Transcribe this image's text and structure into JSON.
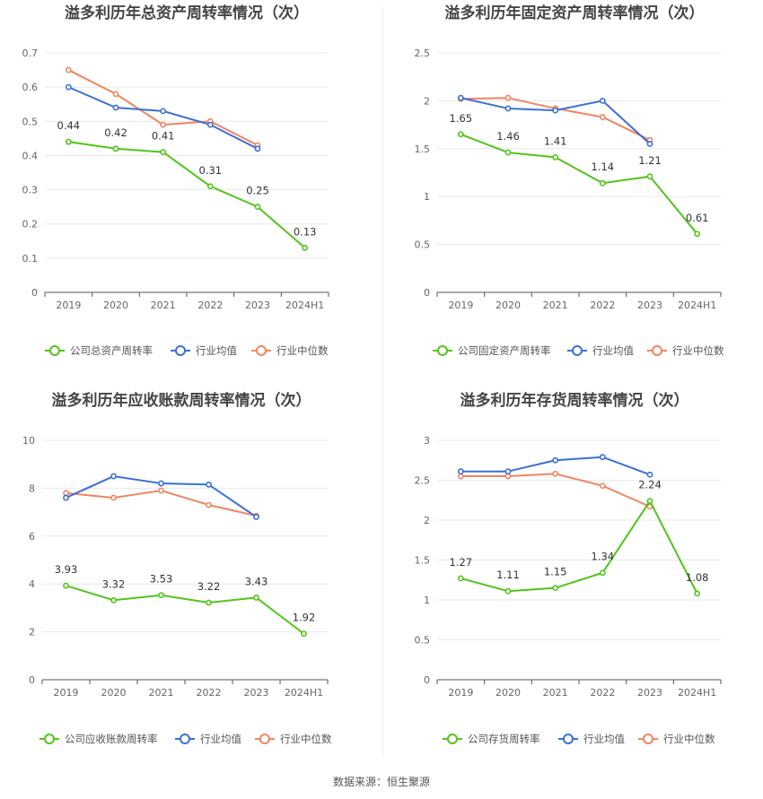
{
  "colors": {
    "company": "#52c41a",
    "avg": "#3b6fd8",
    "median": "#f08560",
    "grid": "#e8e8e8",
    "axis": "#555555",
    "divider": "#eeeeee"
  },
  "source_text": "数据来源：恒生聚源",
  "chart_data": [
    {
      "type": "line",
      "title": "溢多利历年总资产周转率情况（次）",
      "categories": [
        "2019",
        "2020",
        "2021",
        "2022",
        "2023",
        "2024H1"
      ],
      "ylim": [
        0,
        0.7
      ],
      "yticks": [
        "0",
        "0.1",
        "0.2",
        "0.3",
        "0.4",
        "0.5",
        "0.6",
        "0.7"
      ],
      "grid": true,
      "legend_position": "bottom",
      "series": [
        {
          "name": "公司总资产周转率",
          "role": "company",
          "values": [
            0.44,
            0.42,
            0.41,
            0.31,
            0.25,
            0.13
          ],
          "labels": [
            "0.44",
            "0.42",
            "0.41",
            "0.31",
            "0.25",
            "0.13"
          ]
        },
        {
          "name": "行业均值",
          "role": "avg",
          "values": [
            0.6,
            0.54,
            0.53,
            0.49,
            0.42,
            null
          ]
        },
        {
          "name": "行业中位数",
          "role": "median",
          "values": [
            0.65,
            0.58,
            0.49,
            0.5,
            0.43,
            null
          ]
        }
      ]
    },
    {
      "type": "line",
      "title": "溢多利历年固定资产周转率情况（次）",
      "categories": [
        "2019",
        "2020",
        "2021",
        "2022",
        "2023",
        "2024H1"
      ],
      "ylim": [
        0,
        2.5
      ],
      "yticks": [
        "0",
        "0.5",
        "1",
        "1.5",
        "2",
        "2.5"
      ],
      "grid": true,
      "legend_position": "bottom",
      "series": [
        {
          "name": "公司固定资产周转率",
          "role": "company",
          "values": [
            1.65,
            1.46,
            1.41,
            1.14,
            1.21,
            0.61
          ],
          "labels": [
            "1.65",
            "1.46",
            "1.41",
            "1.14",
            "1.21",
            "0.61"
          ]
        },
        {
          "name": "行业均值",
          "role": "avg",
          "values": [
            2.03,
            1.92,
            1.9,
            2.0,
            1.55,
            null
          ]
        },
        {
          "name": "行业中位数",
          "role": "median",
          "values": [
            2.02,
            2.03,
            1.92,
            1.83,
            1.59,
            null
          ]
        }
      ]
    },
    {
      "type": "line",
      "title": "溢多利历年应收账款周转率情况（次）",
      "categories": [
        "2019",
        "2020",
        "2021",
        "2022",
        "2023",
        "2024H1"
      ],
      "ylim": [
        0,
        10
      ],
      "yticks": [
        "0",
        "2",
        "4",
        "6",
        "8",
        "10"
      ],
      "grid": true,
      "legend_position": "bottom",
      "series": [
        {
          "name": "公司应收账款周转率",
          "role": "company",
          "values": [
            3.93,
            3.32,
            3.53,
            3.22,
            3.43,
            1.92
          ],
          "labels": [
            "3.93",
            "3.32",
            "3.53",
            "3.22",
            "3.43",
            "1.92"
          ]
        },
        {
          "name": "行业均值",
          "role": "avg",
          "values": [
            7.6,
            8.5,
            8.2,
            8.15,
            6.8,
            null
          ]
        },
        {
          "name": "行业中位数",
          "role": "median",
          "values": [
            7.8,
            7.6,
            7.9,
            7.3,
            6.85,
            null
          ]
        }
      ]
    },
    {
      "type": "line",
      "title": "溢多利历年存货周转率情况（次）",
      "categories": [
        "2019",
        "2020",
        "2021",
        "2022",
        "2023",
        "2024H1"
      ],
      "ylim": [
        0,
        3
      ],
      "yticks": [
        "0",
        "0.5",
        "1",
        "1.5",
        "2",
        "2.5",
        "3"
      ],
      "grid": true,
      "legend_position": "bottom",
      "series": [
        {
          "name": "公司存货周转率",
          "role": "company",
          "values": [
            1.27,
            1.11,
            1.15,
            1.34,
            2.24,
            1.08
          ],
          "labels": [
            "1.27",
            "1.11",
            "1.15",
            "1.34",
            "2.24",
            "1.08"
          ]
        },
        {
          "name": "行业均值",
          "role": "avg",
          "values": [
            2.61,
            2.61,
            2.75,
            2.79,
            2.57,
            null
          ]
        },
        {
          "name": "行业中位数",
          "role": "median",
          "values": [
            2.55,
            2.55,
            2.58,
            2.43,
            2.17,
            null
          ]
        }
      ]
    }
  ]
}
